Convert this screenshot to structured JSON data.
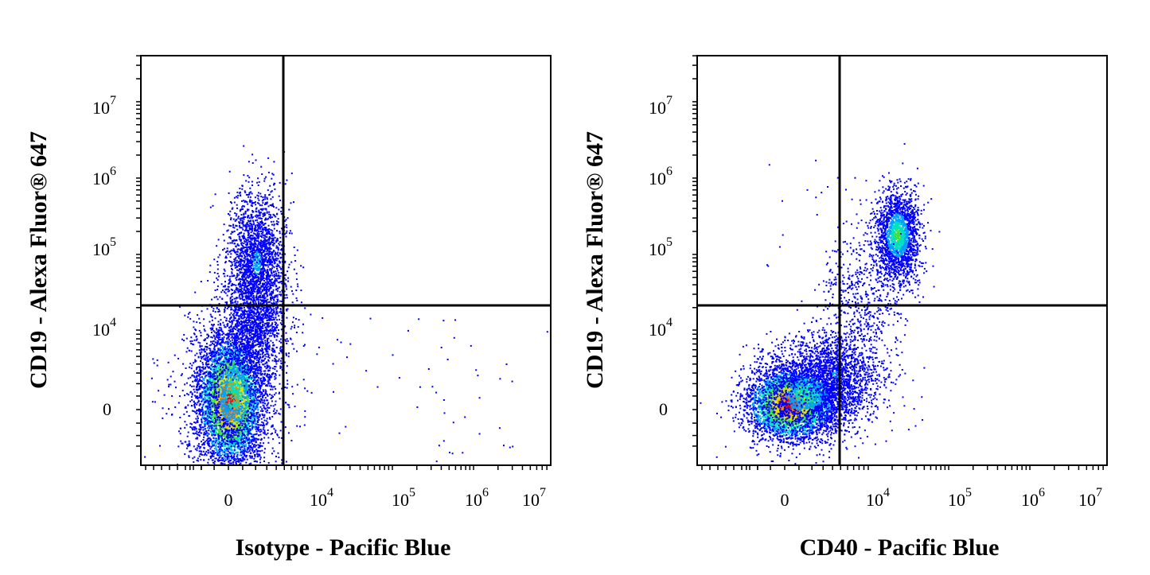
{
  "chart_data": [
    {
      "type": "scatter",
      "title": "",
      "xlabel": "Isotype - Pacific Blue",
      "ylabel": "CD19 - Alexa Fluor® 647",
      "x_ticks": [
        "0",
        "10",
        "10",
        "10",
        "10"
      ],
      "x_tick_exponents": [
        "",
        "4",
        "5",
        "6",
        "7"
      ],
      "y_ticks": [
        "0",
        "10",
        "10",
        "10",
        "10"
      ],
      "y_tick_exponents": [
        "",
        "4",
        "5",
        "6",
        "7"
      ],
      "x_scale": "biexponential",
      "y_scale": "biexponential",
      "quadrant_gate": {
        "x": 3500,
        "y": 18000
      },
      "colormap": [
        "#0000ff",
        "#00a0ff",
        "#00e0c0",
        "#40e040",
        "#e0e000",
        "#ff8000",
        "#ff0000"
      ],
      "populations": [
        {
          "x_center": 0,
          "y_center": 0,
          "density": "highest"
        },
        {
          "x_center": 1500,
          "y_center": 90000,
          "density": "medium"
        }
      ],
      "grid": false
    },
    {
      "type": "scatter",
      "title": "",
      "xlabel": "CD40 - Pacific Blue",
      "ylabel": "CD19 - Alexa Fluor® 647",
      "x_ticks": [
        "0",
        "10",
        "10",
        "10",
        "10"
      ],
      "x_tick_exponents": [
        "",
        "4",
        "5",
        "6",
        "7"
      ],
      "y_ticks": [
        "0",
        "10",
        "10",
        "10",
        "10"
      ],
      "y_tick_exponents": [
        "",
        "4",
        "5",
        "6",
        "7"
      ],
      "x_scale": "biexponential",
      "y_scale": "biexponential",
      "quadrant_gate": {
        "x": 3500,
        "y": 18000
      },
      "colormap": [
        "#0000ff",
        "#00a0ff",
        "#00e0c0",
        "#40e040",
        "#e0e000",
        "#ff8000",
        "#ff0000"
      ],
      "populations": [
        {
          "x_center": 0,
          "y_center": 0,
          "density": "highest"
        },
        {
          "x_center": 20000,
          "y_center": 120000,
          "density": "medium"
        }
      ],
      "grid": false
    }
  ]
}
